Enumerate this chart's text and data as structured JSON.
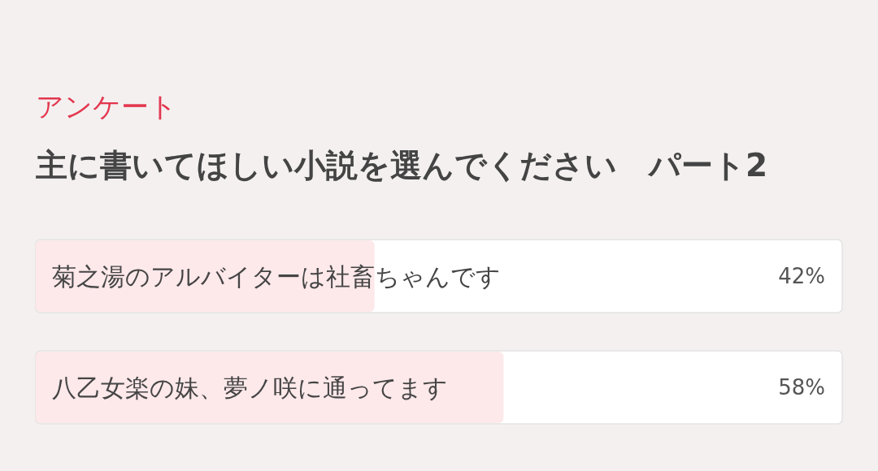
{
  "chart_data": {
    "type": "bar",
    "orientation": "horizontal",
    "subtitle": "アンケート",
    "title": "主に書いてほしい小説を選んでください　パート2",
    "categories": [
      "菊之湯のアルバイターは社畜ちゃんです",
      "八乙女楽の妹、夢ノ咲に通ってます"
    ],
    "values": [
      42,
      58
    ],
    "value_labels": [
      "42%",
      "58%"
    ],
    "color": "#fde8ea",
    "xlim": [
      0,
      100
    ],
    "tick_labels": "y"
  }
}
